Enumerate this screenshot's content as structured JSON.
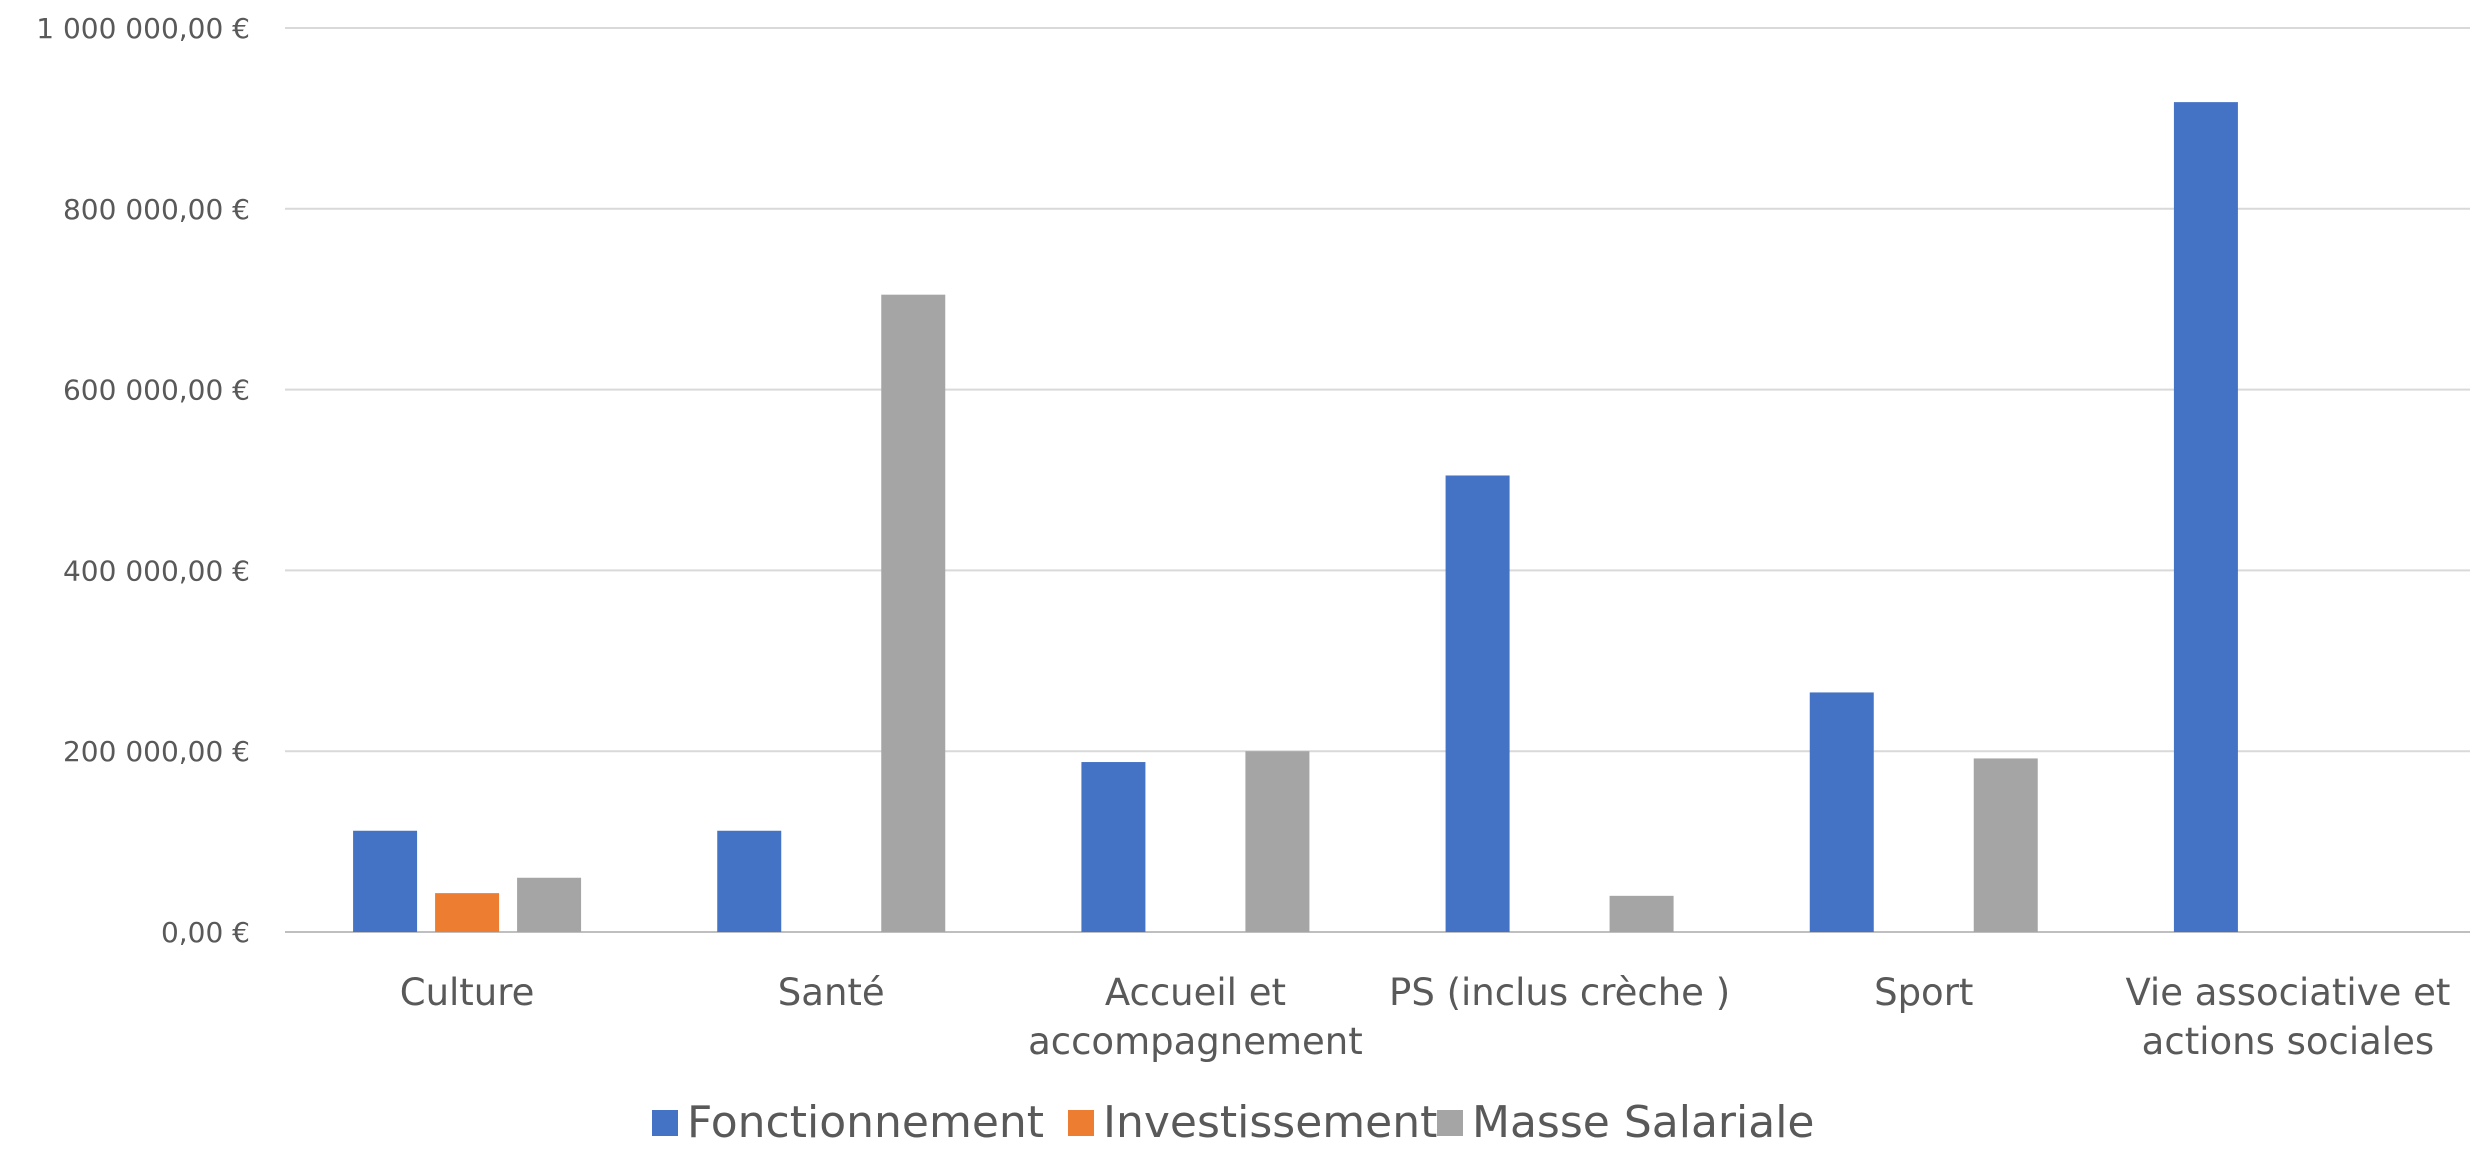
{
  "chart_data": {
    "type": "bar",
    "title": "",
    "xlabel": "",
    "ylabel": "",
    "categories": [
      [
        "Culture"
      ],
      [
        "Santé"
      ],
      [
        "Accueil et",
        "accompagnement"
      ],
      [
        "PS (inclus crèche )"
      ],
      [
        "Sport"
      ],
      [
        "Vie associative et",
        "actions sociales"
      ]
    ],
    "series": [
      {
        "name": "Fonctionnement",
        "color": "#4472c4",
        "values": [
          112000,
          112000,
          188000,
          505000,
          265000,
          918000
        ]
      },
      {
        "name": "Investissement",
        "color": "#ed7d31",
        "values": [
          43000,
          0,
          0,
          0,
          0,
          0
        ]
      },
      {
        "name": "Masse Salariale",
        "color": "#a5a5a5",
        "values": [
          60000,
          705000,
          200000,
          40000,
          192000,
          0
        ]
      }
    ],
    "ylim": [
      0,
      1000000
    ],
    "yticks": [
      0,
      200000,
      400000,
      600000,
      800000,
      1000000
    ],
    "ytick_labels": [
      "0,00 €",
      "200 000,00 €",
      "400 000,00 €",
      "600 000,00 €",
      "800 000,00 €",
      "1 000 000,00 €"
    ],
    "grid": true,
    "legend_position": "bottom"
  }
}
